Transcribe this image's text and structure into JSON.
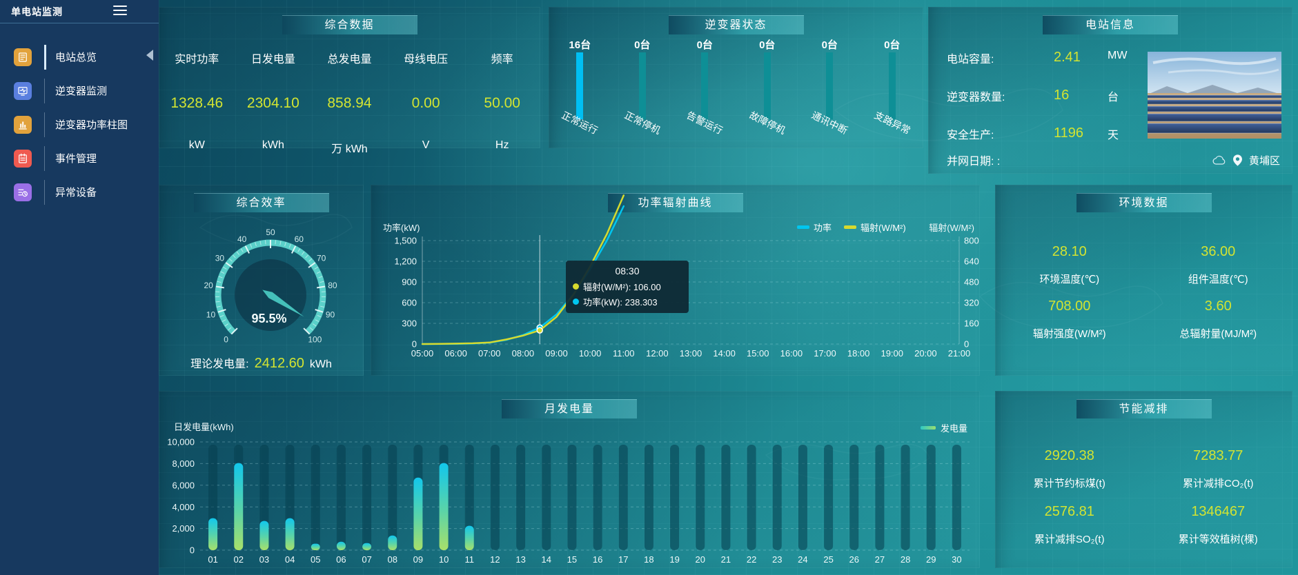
{
  "app": {
    "title": "单电站监测"
  },
  "sidebar": {
    "items": [
      {
        "label": "电站总览",
        "icon": "overview",
        "color": "#e2a23c",
        "active": true
      },
      {
        "label": "逆变器监测",
        "icon": "inverter-monitor",
        "color": "#5a7fdf",
        "active": false
      },
      {
        "label": "逆变器功率柱图",
        "icon": "power-bars",
        "color": "#e2a23c",
        "active": false
      },
      {
        "label": "事件管理",
        "icon": "event",
        "color": "#ef5a50",
        "active": false
      },
      {
        "label": "异常设备",
        "icon": "abnormal-device",
        "color": "#9a6fe6",
        "active": false
      }
    ]
  },
  "summary": {
    "title": "综合数据",
    "metrics": [
      {
        "label": "实时功率",
        "value": "1328.46",
        "unit": "kW"
      },
      {
        "label": "日发电量",
        "value": "2304.10",
        "unit": "kWh"
      },
      {
        "label": "总发电量",
        "value": "858.94",
        "unit": "万 kWh"
      },
      {
        "label": "母线电压",
        "value": "0.00",
        "unit": "V"
      },
      {
        "label": "频率",
        "value": "50.00",
        "unit": "Hz"
      }
    ]
  },
  "inverter_status": {
    "title": "逆变器状态",
    "bars": [
      {
        "count": "16台",
        "label": "正常运行",
        "active": true
      },
      {
        "count": "0台",
        "label": "正常停机",
        "active": false
      },
      {
        "count": "0台",
        "label": "告警运行",
        "active": false
      },
      {
        "count": "0台",
        "label": "故障停机",
        "active": false
      },
      {
        "count": "0台",
        "label": "通讯中断",
        "active": false
      },
      {
        "count": "0台",
        "label": "支路异常",
        "active": false
      }
    ],
    "active_color": "#00bff3",
    "inactive_color": "#0e8f96"
  },
  "station_info": {
    "title": "电站信息",
    "rows": [
      {
        "label": "电站容量:",
        "value": "2.41",
        "unit": "MW"
      },
      {
        "label": "逆变器数量:",
        "value": "16",
        "unit": "台"
      },
      {
        "label": "安全生产:",
        "value": "1196",
        "unit": "天"
      },
      {
        "label": "并网日期:  :",
        "value": "",
        "unit": ""
      }
    ],
    "location": "黄埔区"
  },
  "efficiency": {
    "title": "综合效率",
    "theory_label": "理论发电量:",
    "theory_value": "2412.60",
    "theory_unit": "kWh"
  },
  "power_curve": {
    "title": "功率辐射曲线"
  },
  "environment": {
    "title": "环境数据",
    "items": [
      {
        "value": "28.10",
        "label": "环境温度(℃)"
      },
      {
        "value": "36.00",
        "label": "组件温度(℃)"
      },
      {
        "value": "708.00",
        "label": "辐射强度(W/M²)"
      },
      {
        "value": "3.60",
        "label": "总辐射量(MJ/M²)"
      }
    ]
  },
  "monthly": {
    "title": "月发电量"
  },
  "saving": {
    "title": "节能减排",
    "items": [
      {
        "value": "2920.38",
        "label": "累计节约标煤(t)"
      },
      {
        "value": "7283.77",
        "label": "累计减排CO₂(t)"
      },
      {
        "value": "2576.81",
        "label": "累计减排SO₂(t)"
      },
      {
        "value": "1346467",
        "label": "累计等效植树(棵)"
      }
    ]
  },
  "chart_data": [
    {
      "type": "gauge",
      "panel": "综合效率",
      "min": 0,
      "max": 100,
      "value": 95.5,
      "label": "95.5%"
    },
    {
      "type": "line",
      "panel": "功率辐射曲线",
      "ylabel_left": "功率(kW)",
      "ylabel_right": "辐射(W/M²)",
      "ylim_left": [
        0,
        1500
      ],
      "ylim_right": [
        0,
        800
      ],
      "x_ticks": [
        "05:00",
        "06:00",
        "07:00",
        "08:00",
        "09:00",
        "10:00",
        "11:00",
        "12:00",
        "13:00",
        "14:00",
        "15:00",
        "16:00",
        "17:00",
        "18:00",
        "19:00",
        "20:00",
        "21:00"
      ],
      "legend": [
        {
          "name": "功率",
          "color": "#00c6f0"
        },
        {
          "name": "辐射(W/M²)",
          "color": "#d6da2e"
        }
      ],
      "series": [
        {
          "name": "功率",
          "axis": "left",
          "color": "#00c6f0",
          "x": [
            5,
            5.5,
            6,
            6.5,
            7,
            7.5,
            8,
            8.5,
            9,
            9.5,
            10,
            10.5,
            11
          ],
          "values": [
            0,
            1,
            3,
            8,
            20,
            60,
            130,
            238.303,
            430,
            720,
            1080,
            1500,
            2000
          ]
        },
        {
          "name": "辐射(W/M²)",
          "axis": "right",
          "color": "#d6da2e",
          "x": [
            5,
            5.5,
            6,
            6.5,
            7,
            7.5,
            8,
            8.5,
            9,
            9.5,
            10,
            10.5,
            11
          ],
          "values": [
            0,
            1,
            3,
            6,
            12,
            35,
            65,
            106,
            210,
            380,
            600,
            850,
            1150
          ]
        }
      ],
      "tooltip": {
        "time": "08:30",
        "hover_x": 8.5,
        "items": [
          {
            "name": "辐射(W/M²)",
            "value": "106.00",
            "color": "#d6da2e"
          },
          {
            "name": "功率(kW)",
            "value": "238.303",
            "color": "#00c6f0"
          }
        ]
      }
    },
    {
      "type": "bar",
      "panel": "月发电量",
      "ylabel": "日发电量(kWh)",
      "ylim": [
        0,
        10000
      ],
      "legend": "发电量",
      "categories": [
        "01",
        "02",
        "03",
        "04",
        "05",
        "06",
        "07",
        "08",
        "09",
        "10",
        "11",
        "12",
        "13",
        "14",
        "15",
        "16",
        "17",
        "18",
        "19",
        "20",
        "21",
        "22",
        "23",
        "24",
        "25",
        "26",
        "27",
        "28",
        "29",
        "30"
      ],
      "values": [
        2950,
        8050,
        2700,
        2950,
        600,
        780,
        650,
        1350,
        6700,
        8050,
        2250,
        0,
        0,
        0,
        0,
        0,
        0,
        0,
        0,
        0,
        0,
        0,
        0,
        0,
        0,
        0,
        0,
        0,
        0,
        0
      ]
    },
    {
      "type": "bar",
      "panel": "逆变器状态",
      "unit": "台",
      "categories": [
        "正常运行",
        "正常停机",
        "告警运行",
        "故障停机",
        "通讯中断",
        "支路异常"
      ],
      "values": [
        16,
        0,
        0,
        0,
        0,
        0
      ]
    }
  ]
}
